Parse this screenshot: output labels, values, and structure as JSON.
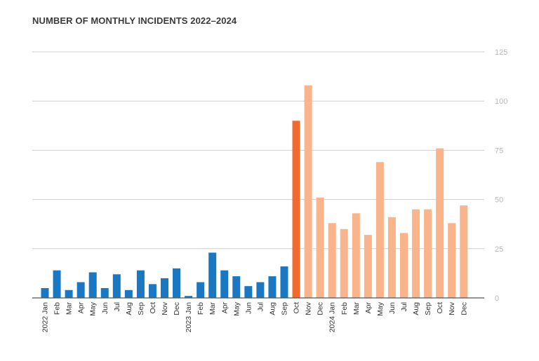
{
  "chart_data": {
    "type": "bar",
    "title": "NUMBER OF MONTHLY INCIDENTS 2022–2024",
    "xlabel": "",
    "ylabel": "",
    "ylim": [
      0,
      125
    ],
    "yticks": [
      0,
      25,
      50,
      75,
      100,
      125
    ],
    "y_axis_position": "right",
    "grid": true,
    "legend": "none",
    "categories": [
      "2022 Jan",
      "Feb",
      "Mar",
      "Apr",
      "May",
      "Jun",
      "Jul",
      "Aug",
      "Sep",
      "Oct",
      "Nov",
      "Dec",
      "2023 Jan",
      "Feb",
      "Mar",
      "Apr",
      "May",
      "Jun",
      "Jul",
      "Aug",
      "Sep",
      "Oct",
      "Nov",
      "Dec",
      "2024 Jan",
      "Feb",
      "Mar",
      "Apr",
      "May",
      "Jun",
      "Jul",
      "Aug",
      "Sep",
      "Oct",
      "Nov",
      "Dec"
    ],
    "values": [
      5,
      14,
      4,
      8,
      13,
      5,
      12,
      4,
      14,
      7,
      10,
      15,
      1,
      8,
      23,
      14,
      11,
      6,
      8,
      11,
      16,
      90,
      108,
      51,
      38,
      35,
      43,
      32,
      69,
      41,
      33,
      45,
      45,
      76,
      38,
      47
    ],
    "bar_colors": [
      "#1a78c2",
      "#1a78c2",
      "#1a78c2",
      "#1a78c2",
      "#1a78c2",
      "#1a78c2",
      "#1a78c2",
      "#1a78c2",
      "#1a78c2",
      "#1a78c2",
      "#1a78c2",
      "#1a78c2",
      "#1a78c2",
      "#1a78c2",
      "#1a78c2",
      "#1a78c2",
      "#1a78c2",
      "#1a78c2",
      "#1a78c2",
      "#1a78c2",
      "#1a78c2",
      "#f26a2e",
      "#f9b48c",
      "#f9b48c",
      "#f9b48c",
      "#f9b48c",
      "#f9b48c",
      "#f9b48c",
      "#f9b48c",
      "#f9b48c",
      "#f9b48c",
      "#f9b48c",
      "#f9b48c",
      "#f9b48c",
      "#f9b48c",
      "#f9b48c"
    ]
  }
}
